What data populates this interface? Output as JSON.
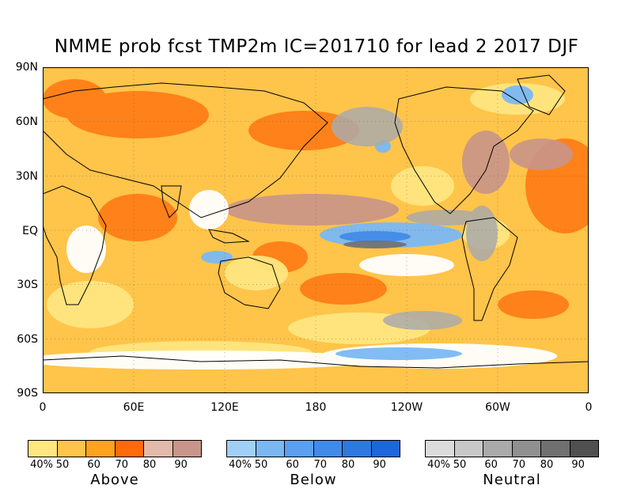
{
  "title": "NMME prob fcst TMP2m IC=201710 for lead 2 2017 DJF",
  "lat_labels": [
    "90N",
    "60N",
    "30N",
    "EQ",
    "30S",
    "60S",
    "90S"
  ],
  "lon_labels": [
    "0",
    "60E",
    "120E",
    "180",
    "120W",
    "60W",
    "0"
  ],
  "legends": [
    {
      "name": "Above",
      "ticks": [
        "40%",
        "50",
        "60",
        "70",
        "80",
        "90"
      ],
      "colors": [
        "#ffe680",
        "#ffc44a",
        "#ffa21c",
        "#ff6a0a",
        "#e2b9aa",
        "#c8958a"
      ]
    },
    {
      "name": "Below",
      "ticks": [
        "40%",
        "50",
        "60",
        "70",
        "80",
        "90"
      ],
      "colors": [
        "#a0d0f8",
        "#7ab8f4",
        "#5aa0ee",
        "#428ae8",
        "#2e78e2",
        "#1e66dc"
      ]
    },
    {
      "name": "Neutral",
      "ticks": [
        "40%",
        "50",
        "60",
        "70",
        "80",
        "90"
      ],
      "colors": [
        "#dcdcdc",
        "#c8c8c8",
        "#aaaaaa",
        "#909090",
        "#707070",
        "#505050"
      ]
    }
  ],
  "map_colors": {
    "background": "#ffc44a",
    "land_edge": "#000000",
    "nino_neutral": "#aaaaaa",
    "nino_below": "#5aa0ee",
    "above_strong": "#ff6a0a",
    "above_weak": "#ffe680",
    "above_dark": "#c8958a"
  }
}
